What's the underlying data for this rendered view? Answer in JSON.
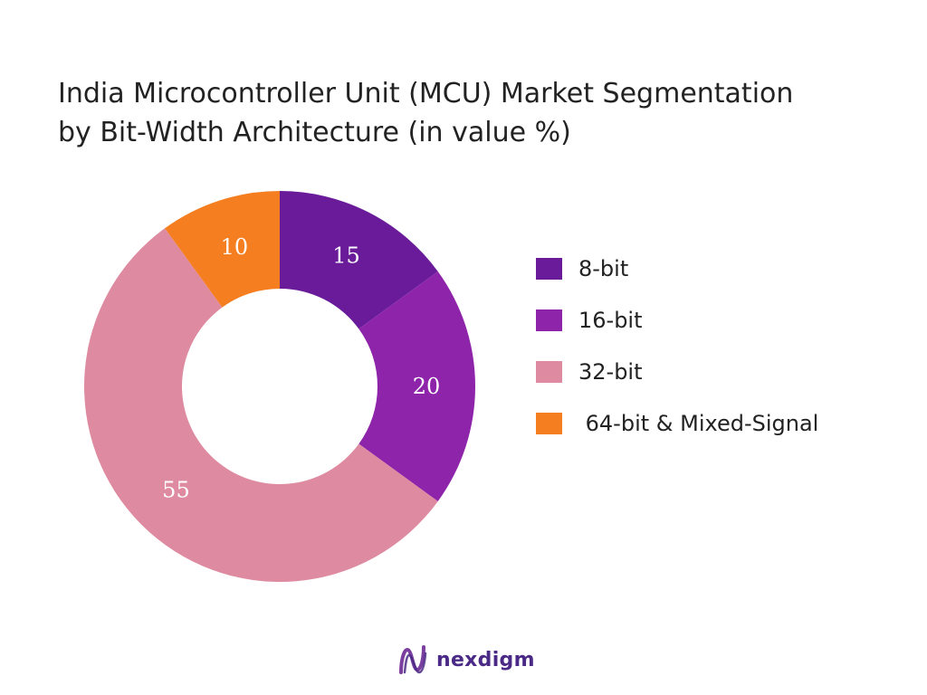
{
  "chart_data": {
    "type": "pie",
    "title": "India Microcontroller Unit (MCU) Market Segmentation by Bit-Width Architecture (in value %)",
    "title_lines": [
      "India Microcontroller Unit (MCU) Market Segmentation",
      "by Bit-Width Architecture (in value %)"
    ],
    "donut": true,
    "legend_position": "right",
    "categories": [
      "8-bit",
      "16-bit",
      "32-bit",
      "64-bit & Mixed-Signal"
    ],
    "values": [
      15,
      20,
      55,
      10
    ],
    "data_labels": [
      "15",
      "20",
      "55",
      "10"
    ],
    "colors": [
      "#6a1b9a",
      "#8e24aa",
      "#de8aa0",
      "#f57f20"
    ],
    "label_colors": [
      "#ffffff",
      "#ffffff",
      "#ffffff",
      "#ffffff"
    ]
  },
  "legend": {
    "items": [
      {
        "label": "8-bit",
        "color": "#6a1b9a"
      },
      {
        "label": "16-bit",
        "color": "#8e24aa"
      },
      {
        "label": "32-bit",
        "color": "#de8aa0"
      },
      {
        "label": " 64-bit & Mixed-Signal",
        "color": "#f57f20"
      }
    ]
  },
  "brand": {
    "name": "nexdigm",
    "logo_icon": "nexdigm-logo-icon",
    "colors": [
      "#7b3fa0",
      "#4a2a86"
    ]
  }
}
